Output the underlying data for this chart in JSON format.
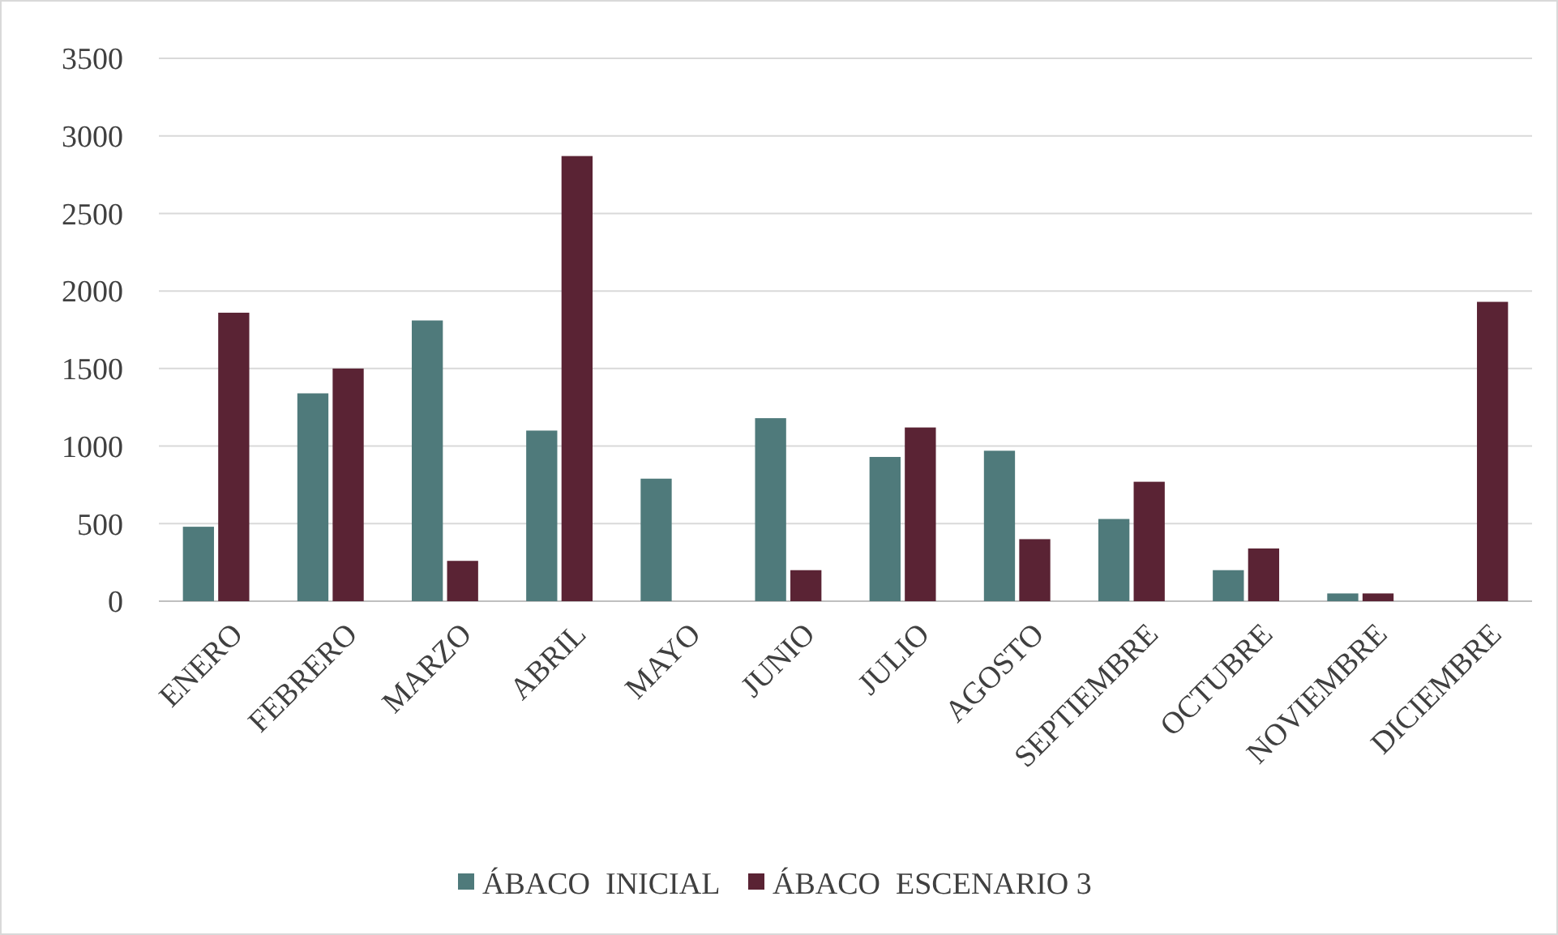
{
  "chart_data": {
    "type": "bar",
    "categories": [
      "ENERO",
      "FEBRERO",
      "MARZO",
      "ABRIL",
      "MAYO",
      "JUNIO",
      "JULIO",
      "AGOSTO",
      "SEPTIEMBRE",
      "OCTUBRE",
      "NOVIEMBRE",
      "DICIEMBRE"
    ],
    "series": [
      {
        "name": "ÁBACO  INICIAL",
        "color": "#4f7a7b",
        "values": [
          480,
          1340,
          1810,
          1100,
          790,
          1180,
          930,
          970,
          530,
          200,
          50,
          0
        ]
      },
      {
        "name": "ÁBACO  ESCENARIO 3",
        "color": "#5a2334",
        "values": [
          1860,
          1500,
          260,
          2870,
          0,
          200,
          1120,
          400,
          770,
          340,
          50,
          1930
        ]
      }
    ],
    "ylim": [
      0,
      3500
    ],
    "yticks": [
      0,
      500,
      1000,
      1500,
      2000,
      2500,
      3000,
      3500
    ],
    "grid": "y",
    "legend": "bottom"
  }
}
